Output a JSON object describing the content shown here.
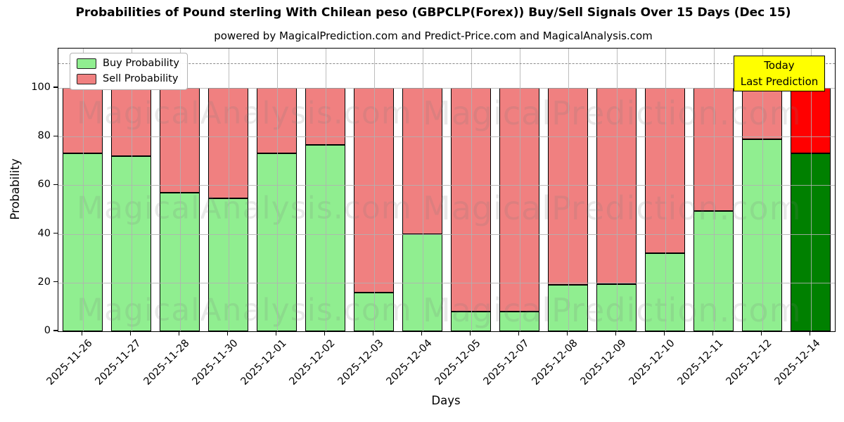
{
  "chart": {
    "title": "Probabilities of Pound sterling With Chilean peso (GBPCLP(Forex)) Buy/Sell Signals Over 15 Days (Dec 15)",
    "subtitle": "powered by MagicalPrediction.com and Predict-Price.com and MagicalAnalysis.com",
    "xlabel": "Days",
    "ylabel": "Probability"
  },
  "legend": {
    "buy_label": "Buy Probability",
    "sell_label": "Sell Probability"
  },
  "today_label": {
    "line1": "Today",
    "line2": "Last Prediction"
  },
  "watermarks": {
    "left": "MagicalAnalysis.com",
    "right": "MagicalPrediction.com"
  },
  "colors": {
    "buy": "#90ee90",
    "sell": "#f08080",
    "today_buy": "#008000",
    "today_sell": "#ff0000",
    "today_box_bg": "#ffff00",
    "grid": "#b2b2b2",
    "bar_edge": "#000000"
  },
  "chart_data": {
    "type": "bar",
    "stacked": true,
    "title": "Probabilities of Pound sterling With Chilean peso (GBPCLP(Forex)) Buy/Sell Signals Over 15 Days (Dec 15)",
    "xlabel": "Days",
    "ylabel": "Probability",
    "categories": [
      "2025-11-26",
      "2025-11-27",
      "2025-11-28",
      "2025-11-30",
      "2025-12-01",
      "2025-12-02",
      "2025-12-03",
      "2025-12-04",
      "2025-12-05",
      "2025-12-07",
      "2025-12-08",
      "2025-12-09",
      "2025-12-10",
      "2025-12-11",
      "2025-12-12",
      "2025-12-14"
    ],
    "series": [
      {
        "name": "Buy Probability",
        "color": "#90ee90",
        "values": [
          73,
          72,
          57,
          54.5,
          73,
          76.5,
          16,
          40,
          8,
          8,
          19,
          19.5,
          32,
          49.5,
          79,
          73
        ]
      },
      {
        "name": "Sell Probability",
        "color": "#f08080",
        "values": [
          27,
          28,
          43,
          45.5,
          27,
          23.5,
          84,
          60,
          92,
          92,
          81,
          80.5,
          68,
          50.5,
          21,
          27
        ]
      }
    ],
    "today_index": 15,
    "today_colors": {
      "buy": "#008000",
      "sell": "#ff0000"
    },
    "yticks": [
      0,
      20,
      40,
      60,
      80,
      100
    ],
    "ylim": [
      0,
      116.2
    ],
    "dashed_line_y": 110,
    "grid": true,
    "legend_position": "upper left"
  }
}
